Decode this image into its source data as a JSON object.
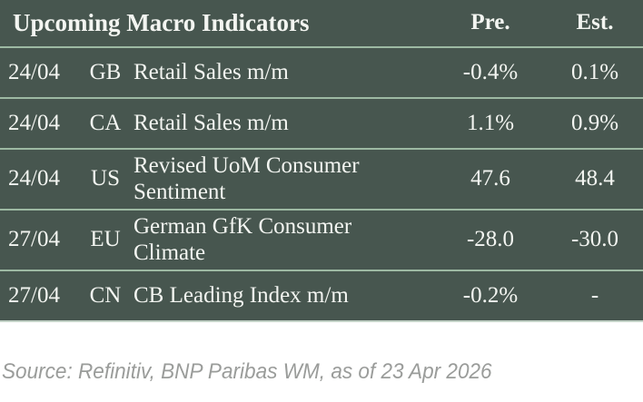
{
  "chart_data": {
    "type": "table",
    "title": "Upcoming Macro Indicators",
    "header": {
      "pre": "Pre.",
      "est": "Est."
    },
    "rows": [
      {
        "date": "24/04",
        "country": "GB",
        "indicator": "Retail Sales m/m",
        "pre": "-0.4%",
        "est": "0.1%"
      },
      {
        "date": "24/04",
        "country": "CA",
        "indicator": "Retail Sales m/m",
        "pre": "1.1%",
        "est": "0.9%"
      },
      {
        "date": "24/04",
        "country": "US",
        "indicator": "Revised UoM Consumer Sentiment",
        "pre": "47.6",
        "est": "48.4"
      },
      {
        "date": "27/04",
        "country": "EU",
        "indicator": "German GfK Consumer Climate",
        "pre": "-28.0",
        "est": "-30.0"
      },
      {
        "date": "27/04",
        "country": "CN",
        "indicator": "CB Leading Index m/m",
        "pre": "-0.2%",
        "est": "-"
      }
    ]
  },
  "footer": {
    "source": "Source: Refinitiv, BNP Paribas WM, as of 23 Apr 2026"
  },
  "colors": {
    "table_background": "#47564f",
    "row_separator": "#9db9a3",
    "table_text": "#f3f5f1",
    "table_bottom_edge": "#c3d2c7",
    "source_text": "#9a9c9a",
    "page_background": "#ffffff"
  }
}
